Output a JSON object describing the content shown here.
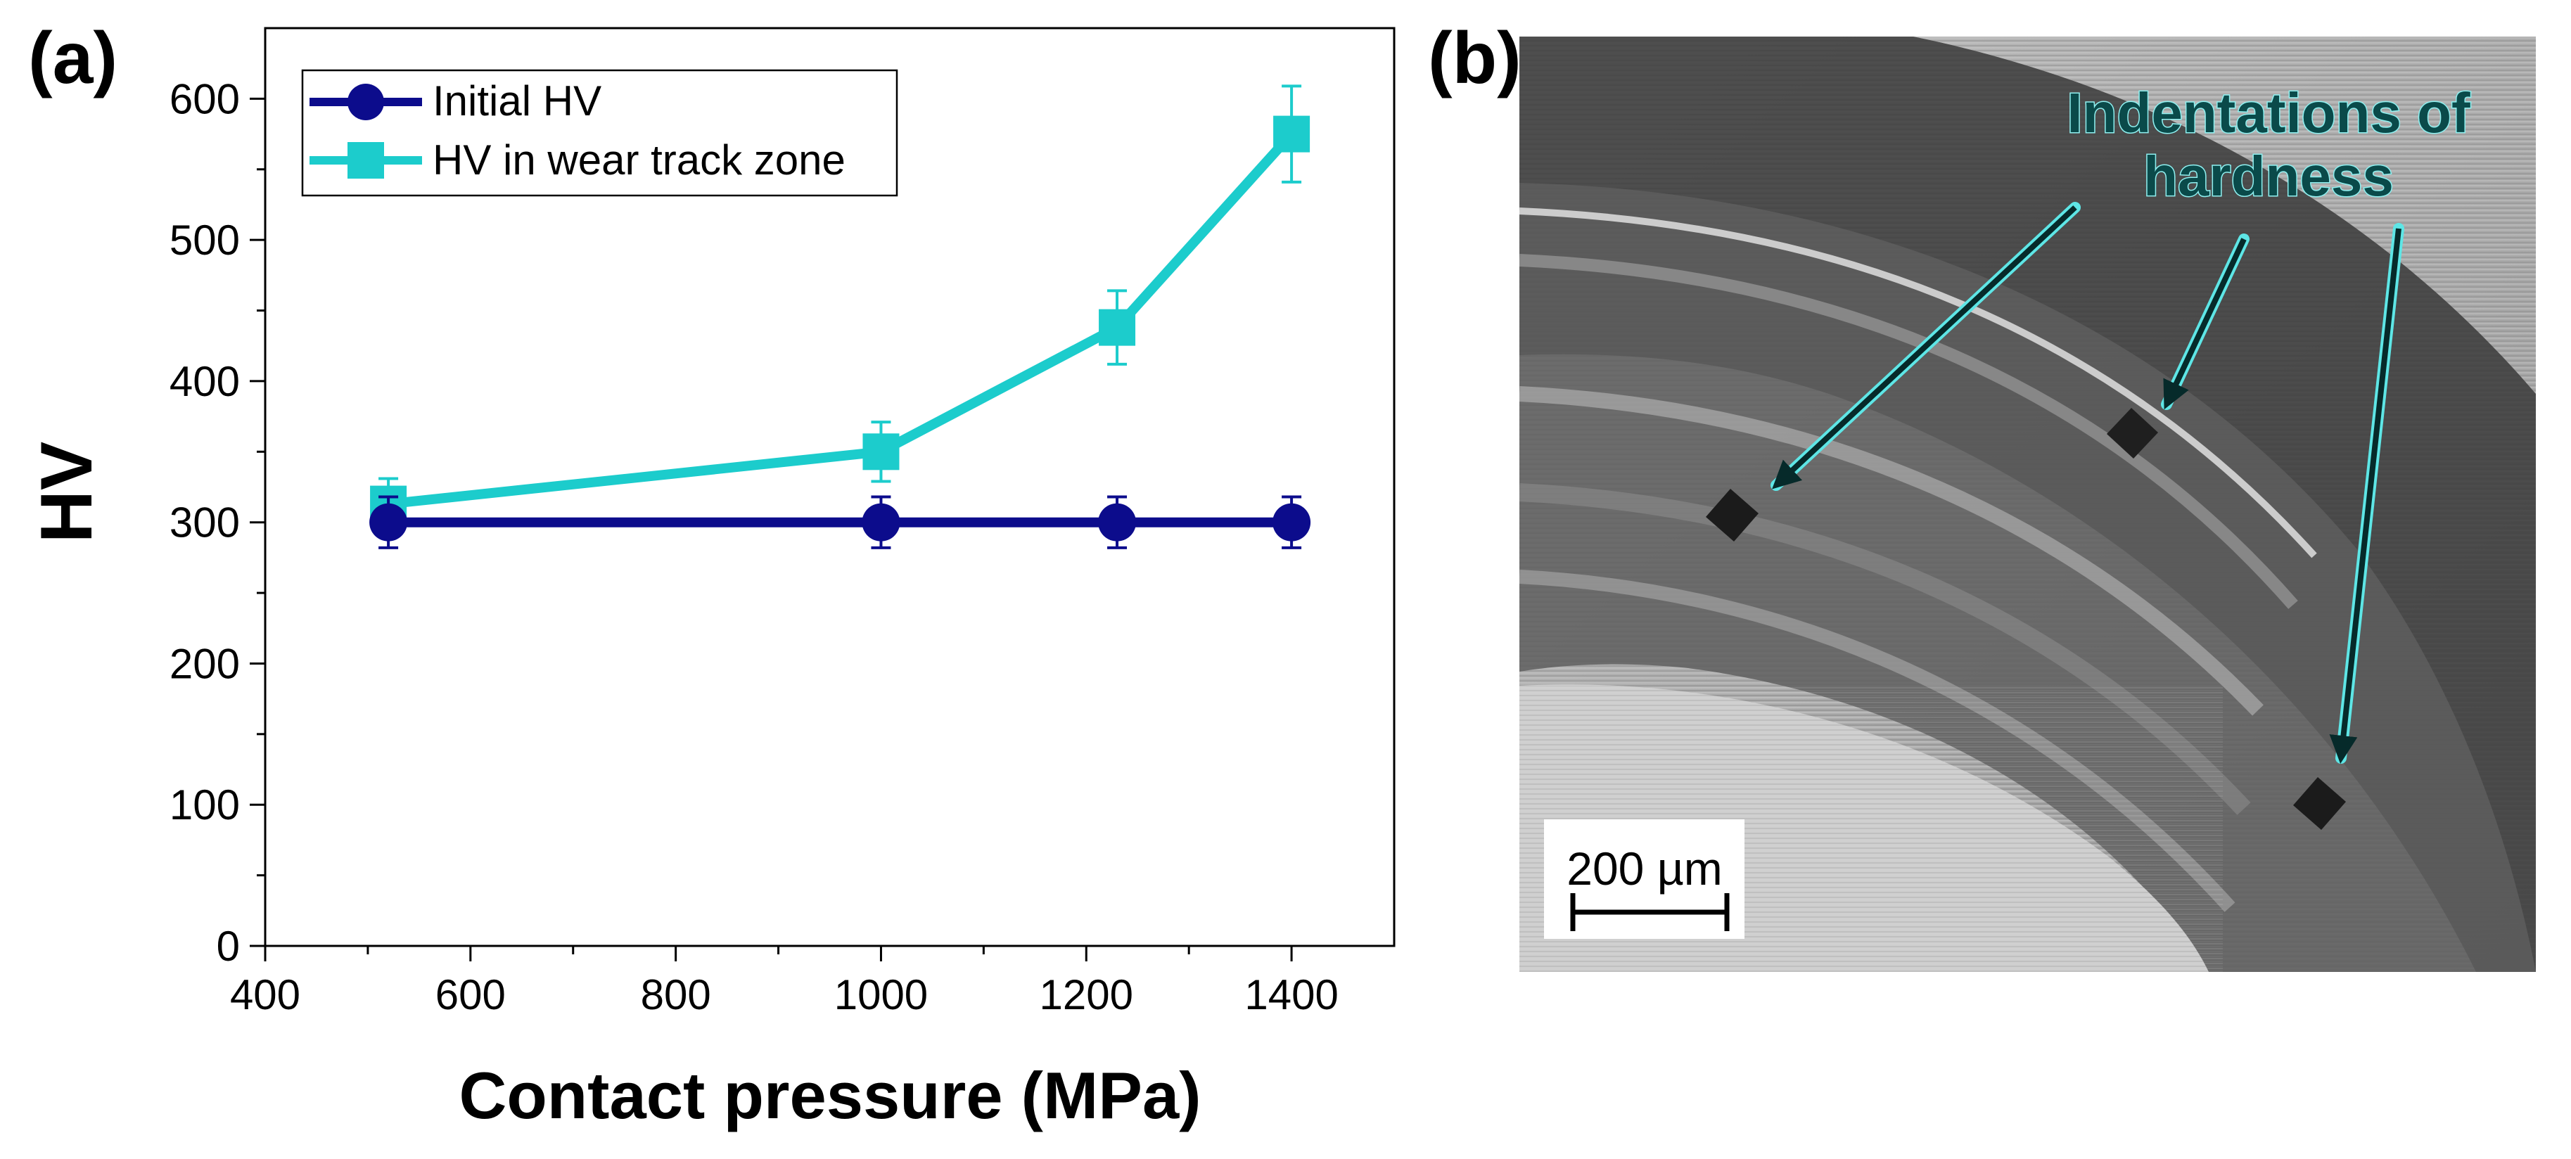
{
  "panel_a": {
    "label": "(a)"
  },
  "panel_b": {
    "label": "(b)",
    "annotation_line1": "Indentations of",
    "annotation_line2": "hardness",
    "scale_bar_label": "200 µm"
  },
  "colors": {
    "initial": "#0c0c8c",
    "wear": "#1ccccc",
    "axis": "#000000"
  },
  "chart_data": {
    "type": "line",
    "title": "",
    "xlabel": "Contact pressure (MPa)",
    "ylabel": "HV",
    "xlim": [
      400,
      1500
    ],
    "ylim": [
      0,
      650
    ],
    "x_ticks": [
      400,
      600,
      800,
      1000,
      1200,
      1400
    ],
    "y_ticks": [
      0,
      100,
      200,
      300,
      400,
      500,
      600
    ],
    "x_tick_labels": [
      "400",
      "600",
      "800",
      "1000",
      "1200",
      "1400"
    ],
    "y_tick_labels": [
      "0",
      "100",
      "200",
      "300",
      "400",
      "500",
      "600"
    ],
    "legend_position": "top-left",
    "series": [
      {
        "name": "Initial HV",
        "marker": "circle",
        "color": "#0c0c8c",
        "x": [
          520,
          1000,
          1230,
          1400
        ],
        "y": [
          300,
          300,
          300,
          300
        ],
        "err": [
          18,
          18,
          18,
          18
        ]
      },
      {
        "name": "HV in wear track zone",
        "marker": "square",
        "color": "#1ccccc",
        "x": [
          520,
          1000,
          1230,
          1400
        ],
        "y": [
          313,
          350,
          438,
          575
        ],
        "err": [
          18,
          21,
          26,
          34
        ]
      }
    ]
  }
}
